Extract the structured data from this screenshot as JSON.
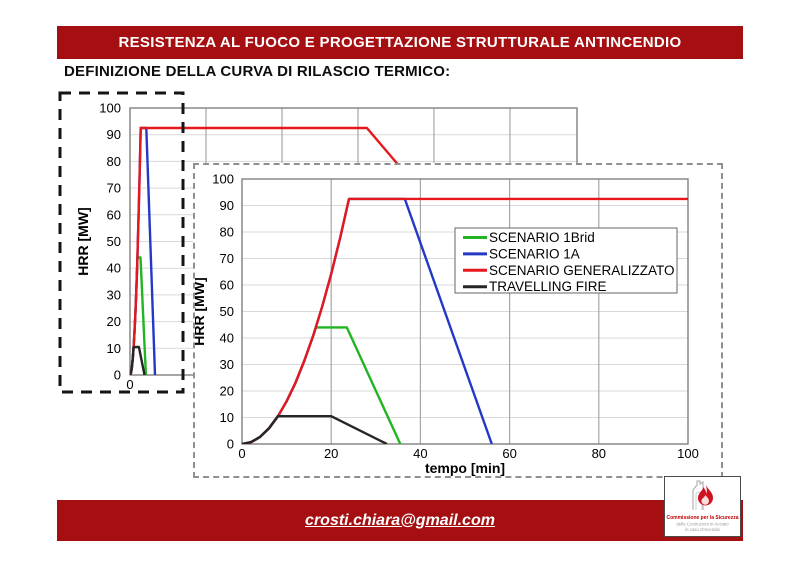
{
  "header": {
    "title": "RESISTENZA AL FUOCO E PROGETTAZIONE STRUTTURALE ANTINCENDIO",
    "subtitle": "DEFINIZIONE DELLA CURVA DI RILASCIO TERMICO:"
  },
  "footer": {
    "email": "crosti.chiara@gmail.com"
  },
  "logo": {
    "line1": "Commissione per la Sicurezza",
    "line2": "delle Costruzioni in Acciaio",
    "line3": "in caso d'Incendio",
    "icon": "flame-icon"
  },
  "colors": {
    "banner_red": "#a50f12",
    "grid_h": "#d9d9d9",
    "grid_v": "#a6a6a6",
    "plot_border": "#808080",
    "back_dash": "#141414",
    "front_dash": "#8f8f8f",
    "tick_text": "#000000"
  },
  "chart_data": {
    "type": "line",
    "series": [
      {
        "name": "SCENARIO 1Brid",
        "color": "#22b422",
        "points": [
          [
            0,
            0
          ],
          [
            2,
            0.6
          ],
          [
            4,
            2.6
          ],
          [
            6,
            5.8
          ],
          [
            8,
            10.3
          ],
          [
            10,
            16.1
          ],
          [
            12,
            23.1
          ],
          [
            14,
            31.5
          ],
          [
            16,
            41.1
          ],
          [
            16.6,
            44
          ],
          [
            23.5,
            44
          ],
          [
            35.5,
            0
          ]
        ]
      },
      {
        "name": "SCENARIO 1A",
        "color": "#2438c8",
        "points": [
          [
            0,
            0
          ],
          [
            2,
            0.6
          ],
          [
            4,
            2.6
          ],
          [
            6,
            5.8
          ],
          [
            8,
            10.3
          ],
          [
            10,
            16.1
          ],
          [
            12,
            23.1
          ],
          [
            14,
            31.5
          ],
          [
            16,
            41.1
          ],
          [
            18,
            52
          ],
          [
            20,
            64.2
          ],
          [
            22,
            77.7
          ],
          [
            24,
            92.5
          ],
          [
            36.5,
            92.5
          ],
          [
            56,
            0
          ]
        ]
      },
      {
        "name": "SCENARIO GENERALIZZATO",
        "color": "#e5181e",
        "points": [
          [
            0,
            0
          ],
          [
            2,
            0.6
          ],
          [
            4,
            2.6
          ],
          [
            6,
            5.8
          ],
          [
            8,
            10.3
          ],
          [
            10,
            16.1
          ],
          [
            12,
            23.1
          ],
          [
            14,
            31.5
          ],
          [
            16,
            41.1
          ],
          [
            18,
            52
          ],
          [
            20,
            64.2
          ],
          [
            22,
            77.7
          ],
          [
            24,
            92.5
          ],
          [
            530,
            92.5
          ],
          [
            1000,
            0
          ]
        ]
      },
      {
        "name": "TRAVELLING FIRE",
        "color": "#262626",
        "points": [
          [
            0,
            0
          ],
          [
            2,
            0.7
          ],
          [
            4,
            2.6
          ],
          [
            6,
            5.9
          ],
          [
            8,
            10.5
          ],
          [
            20,
            10.5
          ],
          [
            32.5,
            0
          ]
        ]
      }
    ],
    "front_chart": {
      "title": "",
      "xlabel": "tempo [min]",
      "ylabel": "HRR [MW]",
      "xlim": [
        0,
        100
      ],
      "ylim": [
        0,
        100
      ],
      "x_ticks": [
        0,
        20,
        40,
        60,
        80,
        100
      ],
      "y_ticks": [
        0,
        10,
        20,
        30,
        40,
        50,
        60,
        70,
        80,
        90,
        100
      ],
      "x_gridlines": [
        20,
        40,
        60,
        80
      ],
      "grid": true,
      "legend": [
        "SCENARIO 1Brid",
        "SCENARIO 1A",
        "SCENARIO GENERALIZZATO",
        "TRAVELLING FIRE"
      ],
      "legend_position": "inside upper right"
    },
    "back_chart": {
      "title": "",
      "xlabel": "",
      "ylabel": "HRR [MW]",
      "xlim": [
        0,
        1000
      ],
      "ylim": [
        0,
        100
      ],
      "x_ticks": [
        0
      ],
      "y_ticks": [
        0,
        10,
        20,
        30,
        40,
        50,
        60,
        70,
        80,
        90,
        100
      ],
      "x_gridlines": [
        170,
        340,
        510,
        680,
        850
      ],
      "grid": true,
      "legend": []
    }
  }
}
